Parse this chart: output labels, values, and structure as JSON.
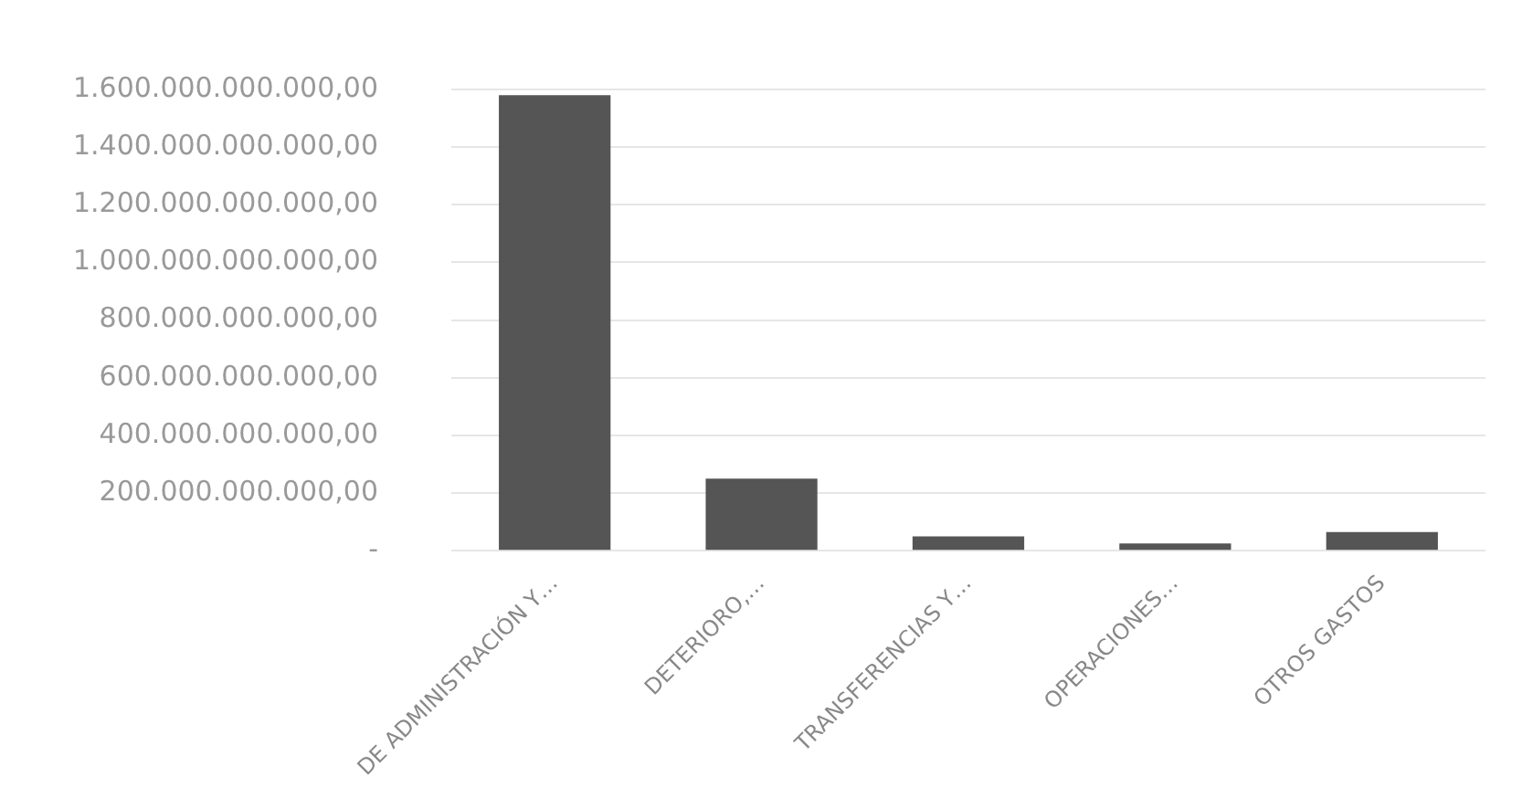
{
  "chart_data": {
    "type": "bar",
    "categories": [
      "DE ADMINISTRACIÓN Y…",
      "DETERIORO,…",
      "TRANSFERENCIAS Y…",
      "OPERACIONES…",
      "OTROS GASTOS"
    ],
    "values": [
      1580000000000,
      250000000000,
      50000000000,
      25000000000,
      65000000000
    ],
    "color": "#555555",
    "ylim": [
      0,
      1600000000000
    ],
    "yticks": [
      {
        "value": 0,
        "label": "-"
      },
      {
        "value": 200000000000,
        "label": "200.000.000.000,00"
      },
      {
        "value": 400000000000,
        "label": "400.000.000.000,00"
      },
      {
        "value": 600000000000,
        "label": "600.000.000.000,00"
      },
      {
        "value": 800000000000,
        "label": "800.000.000.000,00"
      },
      {
        "value": 1000000000000,
        "label": "1.000.000.000.000,00"
      },
      {
        "value": 1200000000000,
        "label": "1.200.000.000.000,00"
      },
      {
        "value": 1400000000000,
        "label": "1.400.000.000.000,00"
      },
      {
        "value": 1600000000000,
        "label": "1.600.000.000.000,00"
      }
    ],
    "grid": "y",
    "legend": false
  }
}
